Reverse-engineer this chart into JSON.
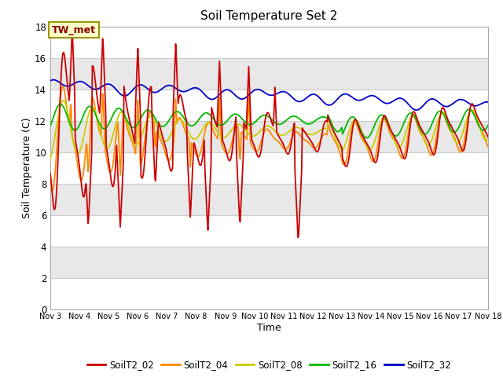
{
  "title": "Soil Temperature Set 2",
  "xlabel": "Time",
  "ylabel": "Soil Temperature (C)",
  "ylim": [
    0,
    18
  ],
  "series_colors": {
    "SoilT2_02": "#cc0000",
    "SoilT2_04": "#ff8800",
    "SoilT2_08": "#cccc00",
    "SoilT2_16": "#00bb00",
    "SoilT2_32": "#0000cc"
  },
  "annotation_text": "TW_met",
  "plot_bg_color": "#e8e8e8",
  "band_color": "#d0d0d0",
  "grid_color": "#ffffff",
  "x_tick_labels": [
    "Nov 3",
    "Nov 4",
    "Nov 5",
    "Nov 6",
    "Nov 7",
    "Nov 8",
    "Nov 9",
    "Nov 10",
    "Nov 11",
    "Nov 12",
    "Nov 13",
    "Nov 14",
    "Nov 15",
    "Nov 16",
    "Nov 17",
    "Nov 18"
  ]
}
